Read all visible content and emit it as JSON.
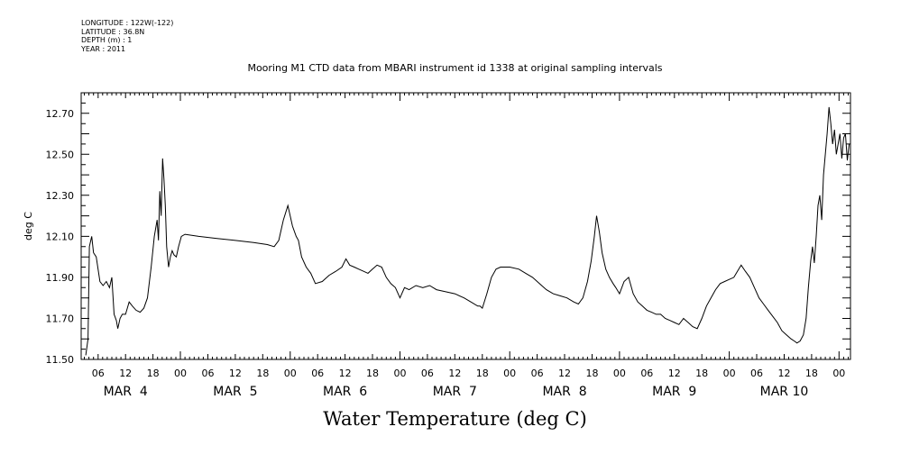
{
  "metadata": {
    "longitude": "LONGITUDE : 122W(-122)",
    "latitude": "LATITUDE : 36.8N",
    "depth": "DEPTH (m) : 1",
    "year": "YEAR : 2011"
  },
  "chart_data": {
    "type": "line",
    "title": "Mooring M1 CTD data from MBARI instrument id 1338 at original sampling intervals",
    "xlabel": "Water Temperature (deg C)",
    "ylabel": "deg C",
    "xlim": [
      2.3,
      170.5
    ],
    "ylim": [
      11.5,
      12.8
    ],
    "y_ticks": [
      "11.50",
      "11.70",
      "11.90",
      "12.10",
      "12.30",
      "12.50",
      "12.70"
    ],
    "x_tick_labels": [
      {
        "hour": 6,
        "label": "06"
      },
      {
        "hour": 12,
        "label": "12"
      },
      {
        "hour": 18,
        "label": "18"
      },
      {
        "hour": 24,
        "label": "00"
      },
      {
        "hour": 30,
        "label": "06"
      },
      {
        "hour": 36,
        "label": "12"
      },
      {
        "hour": 42,
        "label": "18"
      },
      {
        "hour": 48,
        "label": "00"
      },
      {
        "hour": 54,
        "label": "06"
      },
      {
        "hour": 60,
        "label": "12"
      },
      {
        "hour": 66,
        "label": "18"
      },
      {
        "hour": 72,
        "label": "00"
      },
      {
        "hour": 78,
        "label": "06"
      },
      {
        "hour": 84,
        "label": "12"
      },
      {
        "hour": 90,
        "label": "18"
      },
      {
        "hour": 96,
        "label": "00"
      },
      {
        "hour": 102,
        "label": "06"
      },
      {
        "hour": 108,
        "label": "12"
      },
      {
        "hour": 114,
        "label": "18"
      },
      {
        "hour": 120,
        "label": "00"
      },
      {
        "hour": 126,
        "label": "06"
      },
      {
        "hour": 132,
        "label": "12"
      },
      {
        "hour": 138,
        "label": "18"
      },
      {
        "hour": 144,
        "label": "00"
      },
      {
        "hour": 150,
        "label": "06"
      },
      {
        "hour": 156,
        "label": "12"
      },
      {
        "hour": 162,
        "label": "18"
      },
      {
        "hour": 168,
        "label": "00"
      }
    ],
    "day_labels": [
      {
        "hour": 12,
        "label": "MAR  4"
      },
      {
        "hour": 36,
        "label": "MAR  5"
      },
      {
        "hour": 60,
        "label": "MAR  6"
      },
      {
        "hour": 84,
        "label": "MAR  7"
      },
      {
        "hour": 108,
        "label": "MAR  8"
      },
      {
        "hour": 132,
        "label": "MAR  9"
      },
      {
        "hour": 156,
        "label": "MAR 10"
      }
    ],
    "series": [
      {
        "x": [
          3.3,
          3.8,
          4.1,
          4.6,
          5.0,
          5.6,
          6.4,
          7.1,
          7.8,
          8.5,
          9.0,
          9.5,
          10.0,
          10.3,
          10.8,
          11.3,
          12.0,
          12.8,
          13.5,
          14.3,
          15.2,
          16.0,
          16.8,
          17.6,
          18.3,
          18.9,
          19.2,
          19.5,
          19.8,
          20.1,
          20.4,
          20.7,
          21.0,
          21.4,
          21.8,
          22.2,
          22.6,
          23.1,
          23.6,
          24.2,
          25.0,
          28.0,
          32.0,
          36.0,
          40.0,
          43.0,
          44.5,
          45.5,
          46.5,
          47.5,
          48.5,
          49.3,
          49.8,
          50.5,
          51.5,
          52.5,
          53.5,
          55.0,
          56.5,
          58.0,
          59.3,
          60.2,
          61.0,
          62.0,
          63.0,
          64.0,
          65.0,
          66.0,
          67.0,
          68.0,
          69.0,
          70.0,
          71.0,
          72.0,
          73.0,
          74.0,
          75.5,
          77.0,
          78.5,
          80.0,
          82.0,
          84.0,
          86.0,
          87.5,
          89.0,
          89.5,
          90.0,
          91.0,
          92.0,
          93.0,
          94.0,
          96.0,
          98.0,
          99.5,
          101.0,
          102.5,
          104.0,
          105.5,
          107.0,
          108.5,
          110.0,
          111.0,
          112.0,
          113.0,
          113.8,
          114.5,
          115.0,
          115.6,
          116.2,
          117.0,
          117.8,
          118.6,
          119.2,
          120.0,
          121.0,
          122.0,
          123.0,
          124.0,
          125.0,
          126.0,
          127.0,
          128.0,
          129.0,
          130.0,
          131.0,
          132.0,
          133.0,
          134.0,
          135.0,
          136.0,
          137.0,
          138.0,
          139.0,
          140.0,
          141.0,
          142.0,
          143.0,
          144.0,
          145.0,
          145.8,
          146.6,
          147.5,
          148.5,
          149.5,
          150.5,
          151.5,
          152.5,
          153.5,
          154.5,
          155.5,
          156.5,
          157.5,
          158.2,
          158.8,
          159.5,
          160.2,
          160.8,
          161.3,
          161.8,
          162.2,
          162.6,
          163.0,
          163.4,
          163.8,
          164.2,
          164.6,
          165.0,
          165.4,
          165.8,
          166.2,
          166.6,
          167.0,
          167.4,
          167.8,
          168.2,
          168.6,
          169.0,
          169.4,
          169.8,
          170.2
        ],
        "y": [
          11.52,
          11.6,
          12.05,
          12.1,
          12.02,
          12.0,
          11.88,
          11.86,
          11.88,
          11.85,
          11.9,
          11.72,
          11.69,
          11.65,
          11.7,
          11.72,
          11.72,
          11.78,
          11.76,
          11.74,
          11.73,
          11.75,
          11.8,
          11.95,
          12.1,
          12.18,
          12.08,
          12.32,
          12.2,
          12.48,
          12.38,
          12.25,
          12.05,
          11.95,
          12.0,
          12.03,
          12.01,
          12.0,
          12.05,
          12.1,
          12.11,
          12.1,
          12.09,
          12.08,
          12.07,
          12.06,
          12.05,
          12.08,
          12.18,
          12.25,
          12.15,
          12.1,
          12.08,
          12.0,
          11.95,
          11.92,
          11.87,
          11.88,
          11.91,
          11.93,
          11.95,
          11.99,
          11.96,
          11.95,
          11.94,
          11.93,
          11.92,
          11.94,
          11.96,
          11.95,
          11.9,
          11.87,
          11.85,
          11.8,
          11.85,
          11.84,
          11.86,
          11.85,
          11.86,
          11.84,
          11.83,
          11.82,
          11.8,
          11.78,
          11.76,
          11.76,
          11.75,
          11.82,
          11.9,
          11.94,
          11.95,
          11.95,
          11.94,
          11.92,
          11.9,
          11.87,
          11.84,
          11.82,
          11.81,
          11.8,
          11.78,
          11.77,
          11.8,
          11.88,
          11.98,
          12.1,
          12.2,
          12.12,
          12.02,
          11.94,
          11.9,
          11.87,
          11.85,
          11.82,
          11.88,
          11.9,
          11.82,
          11.78,
          11.76,
          11.74,
          11.73,
          11.72,
          11.72,
          11.7,
          11.69,
          11.68,
          11.67,
          11.7,
          11.68,
          11.66,
          11.65,
          11.7,
          11.76,
          11.8,
          11.84,
          11.87,
          11.88,
          11.89,
          11.9,
          11.93,
          11.96,
          11.93,
          11.9,
          11.85,
          11.8,
          11.77,
          11.74,
          11.71,
          11.68,
          11.64,
          11.62,
          11.6,
          11.59,
          11.58,
          11.59,
          11.62,
          11.7,
          11.85,
          11.98,
          12.05,
          11.97,
          12.1,
          12.25,
          12.3,
          12.18,
          12.4,
          12.5,
          12.6,
          12.73,
          12.65,
          12.55,
          12.62,
          12.5,
          12.55,
          12.6,
          12.48,
          12.58,
          12.6,
          12.47,
          12.55
        ]
      }
    ]
  }
}
